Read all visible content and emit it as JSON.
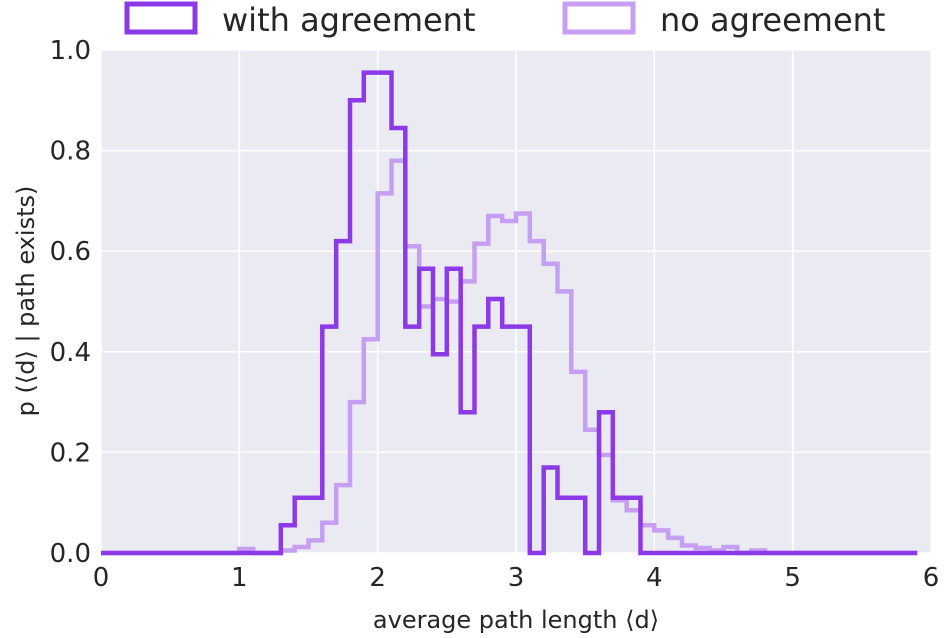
{
  "chart_data": {
    "type": "line",
    "style": "step-histogram",
    "xlabel": "average path length ⟨d⟩",
    "ylabel": "p (⟨d⟩ | path exists)",
    "xlim": [
      0,
      6
    ],
    "ylim": [
      0,
      1.0
    ],
    "x_ticks": [
      "0",
      "1",
      "2",
      "3",
      "4",
      "5",
      "6"
    ],
    "y_ticks": [
      "0.0",
      "0.2",
      "0.4",
      "0.6",
      "0.8",
      "1.0"
    ],
    "grid": true,
    "background": "#eaeaf2",
    "legend_position": "top",
    "series": [
      {
        "name": "with agreement",
        "color": "#8c39e8",
        "points": [
          [
            0.0,
            0.0
          ],
          [
            1.3,
            0.0
          ],
          [
            1.3,
            0.055
          ],
          [
            1.4,
            0.055
          ],
          [
            1.4,
            0.11
          ],
          [
            1.6,
            0.11
          ],
          [
            1.6,
            0.45
          ],
          [
            1.7,
            0.45
          ],
          [
            1.7,
            0.62
          ],
          [
            1.8,
            0.62
          ],
          [
            1.8,
            0.9
          ],
          [
            1.9,
            0.9
          ],
          [
            1.9,
            0.955
          ],
          [
            2.1,
            0.955
          ],
          [
            2.1,
            0.845
          ],
          [
            2.2,
            0.845
          ],
          [
            2.2,
            0.45
          ],
          [
            2.3,
            0.45
          ],
          [
            2.3,
            0.565
          ],
          [
            2.4,
            0.565
          ],
          [
            2.4,
            0.395
          ],
          [
            2.5,
            0.395
          ],
          [
            2.5,
            0.565
          ],
          [
            2.6,
            0.565
          ],
          [
            2.6,
            0.28
          ],
          [
            2.7,
            0.28
          ],
          [
            2.7,
            0.45
          ],
          [
            2.8,
            0.45
          ],
          [
            2.8,
            0.505
          ],
          [
            2.9,
            0.505
          ],
          [
            2.9,
            0.45
          ],
          [
            3.1,
            0.45
          ],
          [
            3.1,
            0.0
          ],
          [
            3.2,
            0.0
          ],
          [
            3.2,
            0.17
          ],
          [
            3.3,
            0.17
          ],
          [
            3.3,
            0.11
          ],
          [
            3.5,
            0.11
          ],
          [
            3.5,
            0.0
          ],
          [
            3.6,
            0.0
          ],
          [
            3.6,
            0.28
          ],
          [
            3.7,
            0.28
          ],
          [
            3.7,
            0.11
          ],
          [
            3.9,
            0.11
          ],
          [
            3.9,
            0.0
          ],
          [
            5.9,
            0.0
          ]
        ]
      },
      {
        "name": "no agreement",
        "color": "#c79ff2",
        "points": [
          [
            0.0,
            0.0
          ],
          [
            1.0,
            0.0
          ],
          [
            1.0,
            0.008
          ],
          [
            1.1,
            0.008
          ],
          [
            1.1,
            0.0
          ],
          [
            1.3,
            0.0
          ],
          [
            1.3,
            0.005
          ],
          [
            1.4,
            0.005
          ],
          [
            1.4,
            0.012
          ],
          [
            1.5,
            0.012
          ],
          [
            1.5,
            0.025
          ],
          [
            1.6,
            0.025
          ],
          [
            1.6,
            0.06
          ],
          [
            1.7,
            0.06
          ],
          [
            1.7,
            0.135
          ],
          [
            1.8,
            0.135
          ],
          [
            1.8,
            0.3
          ],
          [
            1.9,
            0.3
          ],
          [
            1.9,
            0.425
          ],
          [
            2.0,
            0.425
          ],
          [
            2.0,
            0.715
          ],
          [
            2.1,
            0.715
          ],
          [
            2.1,
            0.78
          ],
          [
            2.2,
            0.78
          ],
          [
            2.2,
            0.61
          ],
          [
            2.3,
            0.61
          ],
          [
            2.3,
            0.49
          ],
          [
            2.4,
            0.49
          ],
          [
            2.4,
            0.505
          ],
          [
            2.5,
            0.505
          ],
          [
            2.5,
            0.5
          ],
          [
            2.6,
            0.5
          ],
          [
            2.6,
            0.54
          ],
          [
            2.7,
            0.54
          ],
          [
            2.7,
            0.615
          ],
          [
            2.8,
            0.615
          ],
          [
            2.8,
            0.67
          ],
          [
            2.9,
            0.67
          ],
          [
            2.9,
            0.66
          ],
          [
            3.0,
            0.66
          ],
          [
            3.0,
            0.675
          ],
          [
            3.1,
            0.675
          ],
          [
            3.1,
            0.62
          ],
          [
            3.2,
            0.62
          ],
          [
            3.2,
            0.575
          ],
          [
            3.3,
            0.575
          ],
          [
            3.3,
            0.52
          ],
          [
            3.4,
            0.52
          ],
          [
            3.4,
            0.36
          ],
          [
            3.5,
            0.36
          ],
          [
            3.5,
            0.245
          ],
          [
            3.6,
            0.245
          ],
          [
            3.6,
            0.195
          ],
          [
            3.7,
            0.195
          ],
          [
            3.7,
            0.105
          ],
          [
            3.8,
            0.105
          ],
          [
            3.8,
            0.085
          ],
          [
            3.9,
            0.085
          ],
          [
            3.9,
            0.055
          ],
          [
            4.0,
            0.055
          ],
          [
            4.0,
            0.045
          ],
          [
            4.1,
            0.045
          ],
          [
            4.1,
            0.03
          ],
          [
            4.2,
            0.03
          ],
          [
            4.2,
            0.015
          ],
          [
            4.3,
            0.015
          ],
          [
            4.3,
            0.01
          ],
          [
            4.4,
            0.01
          ],
          [
            4.4,
            0.005
          ],
          [
            4.5,
            0.005
          ],
          [
            4.5,
            0.012
          ],
          [
            4.6,
            0.012
          ],
          [
            4.6,
            0.0
          ],
          [
            4.7,
            0.0
          ],
          [
            4.7,
            0.005
          ],
          [
            4.8,
            0.005
          ],
          [
            4.8,
            0.0
          ],
          [
            5.9,
            0.0
          ]
        ]
      }
    ]
  }
}
